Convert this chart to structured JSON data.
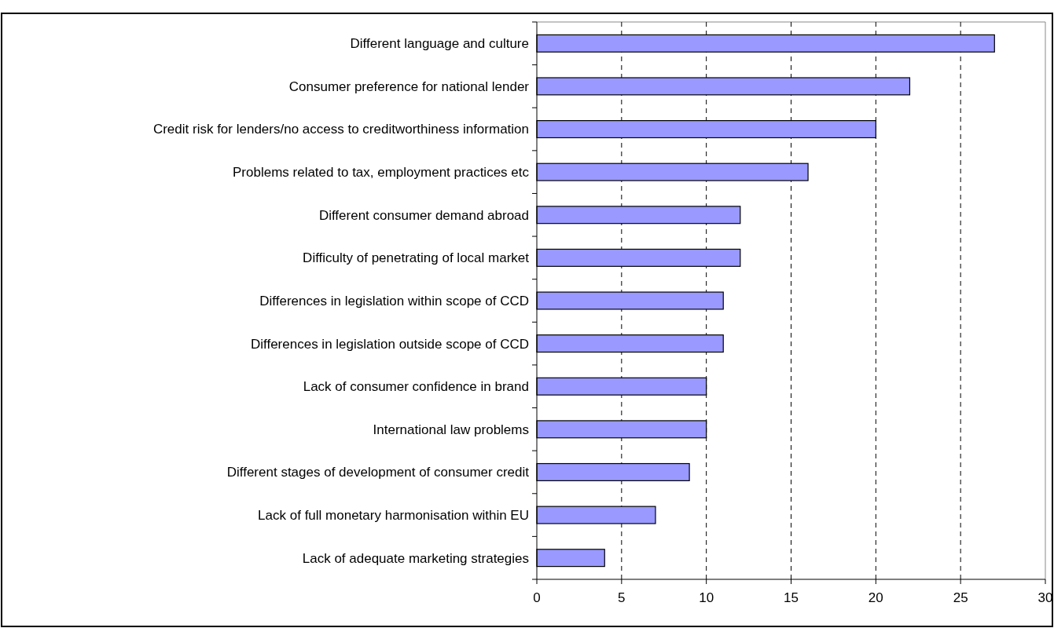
{
  "chart_data": {
    "type": "bar",
    "orientation": "horizontal",
    "categories": [
      "Different language and culture",
      "Consumer preference for national lender",
      "Credit risk for lenders/no access to creditworthiness information",
      "Problems related to tax, employment practices etc",
      "Different consumer demand abroad",
      "Difficulty of penetrating of local market",
      "Differences in legislation within scope of CCD",
      "Differences in legislation outside scope of CCD",
      "Lack of consumer confidence in brand",
      "International law problems",
      "Different stages of development of consumer credit",
      "Lack of full monetary harmonisation within EU",
      "Lack of adequate marketing strategies"
    ],
    "values": [
      27,
      22,
      20,
      16,
      12,
      12,
      11,
      11,
      10,
      10,
      9,
      7,
      4
    ],
    "color": "#9999ff",
    "xlim": [
      0,
      30
    ],
    "xticks": [
      0,
      5,
      10,
      15,
      20,
      25,
      30
    ],
    "grid": "x"
  }
}
